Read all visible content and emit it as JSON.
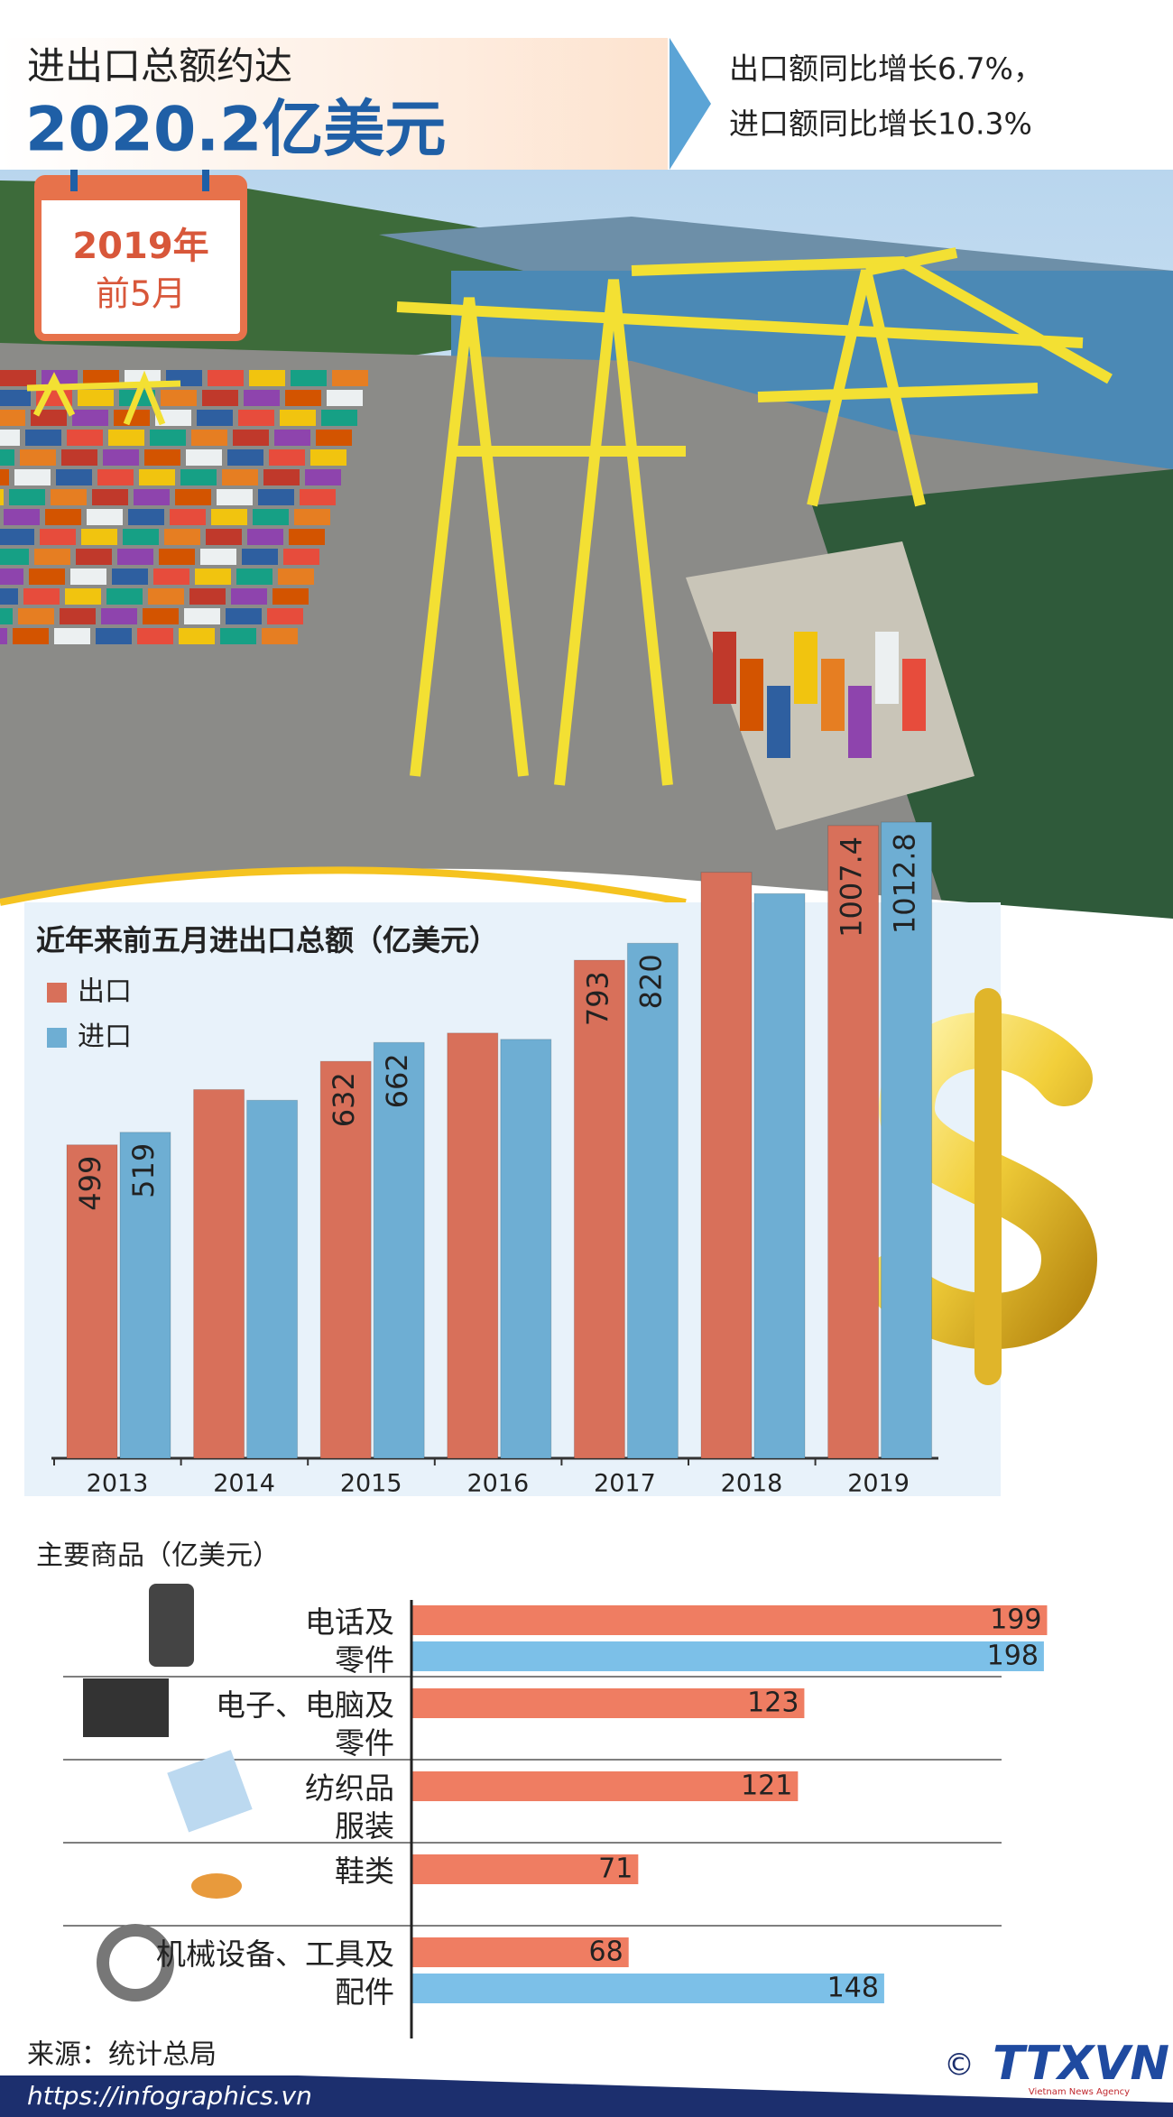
{
  "header": {
    "title_line1": "进出口总额约达",
    "title_line2": "2020.2亿美元",
    "note_line1": "出口额同比增长6.7%，",
    "note_line2": "进口额同比增长10.3%",
    "badge_year": "2019年",
    "badge_period": "前5月"
  },
  "chart_data": [
    {
      "type": "bar",
      "title": "近年来前五月进出口总额（亿美元）",
      "categories": [
        "2013",
        "2014",
        "2015",
        "2016",
        "2017",
        "2018",
        "2019"
      ],
      "series": [
        {
          "name": "出口",
          "color": "#d8705a",
          "values": [
            499,
            587,
            632,
            677,
            793,
            933,
            1007.4
          ],
          "value_labels": [
            "499",
            null,
            "632",
            null,
            "793",
            null,
            "1007.4"
          ]
        },
        {
          "name": "进口",
          "color": "#6eaed3",
          "values": [
            519,
            570,
            662,
            667,
            820,
            899,
            1012.8
          ],
          "value_labels": [
            "519",
            null,
            "662",
            null,
            "820",
            null,
            "1012.8"
          ]
        }
      ],
      "ylim": [
        0,
        1100
      ]
    },
    {
      "type": "bar",
      "orientation": "horizontal",
      "title": "主要商品（亿美元）",
      "categories": [
        "电话及\n零件",
        "电子、电脑及\n零件",
        "纺织品\n服装",
        "鞋类",
        "机械设备、工具及\n配件"
      ],
      "series": [
        {
          "color": "#ef7d62",
          "values": [
            199,
            123,
            121,
            71,
            68
          ]
        },
        {
          "color": "#7cc0e8",
          "values": [
            198,
            null,
            null,
            null,
            148
          ]
        }
      ],
      "xlim": [
        0,
        200
      ]
    }
  ],
  "footer": {
    "source": "来源：统计总局",
    "url": "https://infographics.vn",
    "copyright": "©",
    "logo": "TTXVN",
    "logo_sub": "Vietnam News Agency"
  }
}
